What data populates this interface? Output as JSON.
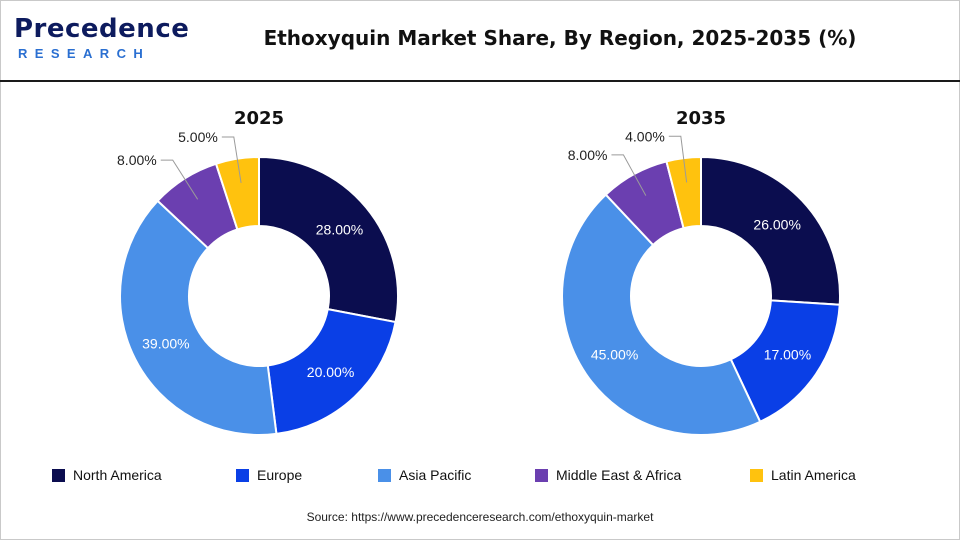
{
  "header": {
    "logo_top": "Precedence",
    "logo_bottom": "RESEARCH",
    "title": "Ethoxyquin Market Share, By Region, 2025-2035 (%)"
  },
  "colors": {
    "north_america": "#0b0d4f",
    "europe": "#0a3fe6",
    "asia_pacific": "#4a90e8",
    "middle_east_africa": "#6b3fb0",
    "latin_america": "#ffc20e"
  },
  "chart_data": [
    {
      "type": "pie",
      "title": "2025",
      "categories": [
        "North America",
        "Europe",
        "Asia Pacific",
        "Middle East & Africa",
        "Latin America"
      ],
      "values": [
        28,
        20,
        39,
        8,
        5
      ],
      "labels": [
        "28.00%",
        "20.00%",
        "39.00%",
        "8.00%",
        "5.00%"
      ]
    },
    {
      "type": "pie",
      "title": "2035",
      "categories": [
        "North America",
        "Europe",
        "Asia Pacific",
        "Middle East & Africa",
        "Latin America"
      ],
      "values": [
        26,
        17,
        45,
        8,
        4
      ],
      "labels": [
        "26.00%",
        "17.00%",
        "45.00%",
        "8.00%",
        "4.00%"
      ]
    }
  ],
  "legend": [
    {
      "label": "North America",
      "color": "#0b0d4f"
    },
    {
      "label": "Europe",
      "color": "#0a3fe6"
    },
    {
      "label": "Asia Pacific",
      "color": "#4a90e8"
    },
    {
      "label": "Middle East & Africa",
      "color": "#6b3fb0"
    },
    {
      "label": "Latin America",
      "color": "#ffc20e"
    }
  ],
  "source": "Source: https://www.precedenceresearch.com/ethoxyquin-market"
}
